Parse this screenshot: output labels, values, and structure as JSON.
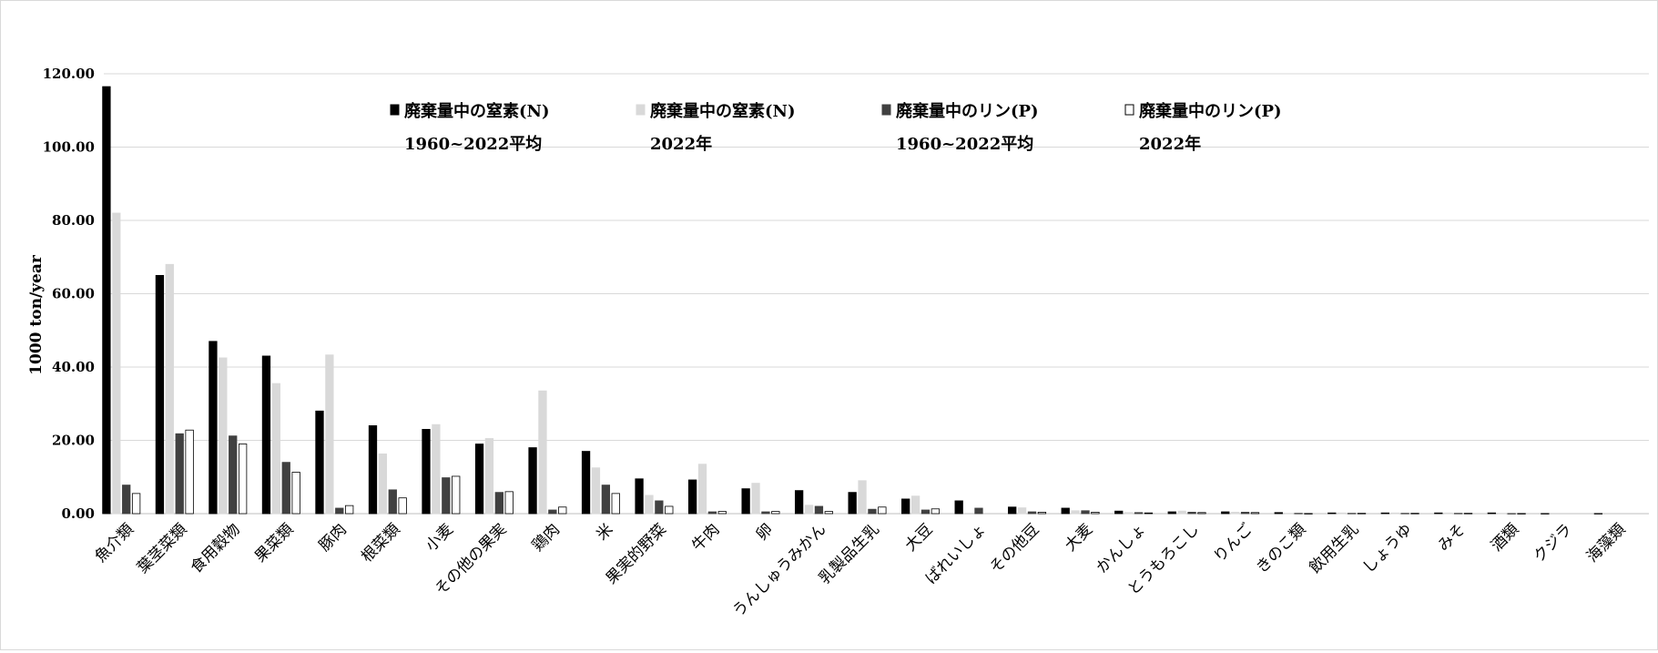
{
  "chart_data": {
    "type": "bar",
    "title": "",
    "xlabel": "",
    "ylabel": "1000 ton/year",
    "ylim": [
      0,
      120
    ],
    "yticks": [
      "0.00",
      "20.00",
      "40.00",
      "60.00",
      "80.00",
      "100.00",
      "120.00"
    ],
    "grid": true,
    "legend_position": "top",
    "categories": [
      "魚介類",
      "葉茎菜類",
      "食用穀物",
      "果菜類",
      "豚肉",
      "根菜類",
      "小麦",
      "その他の果実",
      "鶏肉",
      "米",
      "果実的野菜",
      "牛肉",
      "卵",
      "うんしゅうみかん",
      "乳製品生乳",
      "大豆",
      "ばれいしょ",
      "その他豆",
      "大麦",
      "かんしょ",
      "とうもろこし",
      "りんご",
      "きのこ類",
      "飲用生乳",
      "しょうゆ",
      "みそ",
      "酒類",
      "クジラ",
      "海藻類"
    ],
    "series": [
      {
        "name": "廃棄量中の窒素(N)",
        "name_line2": "1960~2022平均",
        "color": "#000000",
        "stroke": "#000000",
        "values": [
          116.5,
          65.0,
          47.0,
          43.0,
          28.0,
          24.0,
          23.0,
          19.0,
          18.0,
          17.0,
          9.5,
          9.2,
          6.8,
          6.3,
          5.8,
          4.0,
          3.5,
          1.8,
          1.5,
          0.7,
          0.5,
          0.5,
          0.3,
          0.2,
          0.2,
          0.2,
          0.2,
          0.05,
          0.05
        ]
      },
      {
        "name": "廃棄量中の窒素(N)",
        "name_line2": "2022年",
        "color": "#d9d9d9",
        "stroke": "#d9d9d9",
        "values": [
          82.0,
          68.0,
          42.5,
          35.5,
          43.3,
          16.3,
          24.3,
          20.5,
          33.5,
          12.5,
          5.0,
          13.5,
          8.3,
          2.3,
          9.0,
          4.8,
          0.0,
          1.6,
          0.8,
          0.3,
          0.7,
          0.4,
          0.1,
          0.2,
          0.2,
          0.2,
          0.1,
          0.0,
          0.0
        ]
      },
      {
        "name": "廃棄量中のリン(P)",
        "name_line2": "1960~2022平均",
        "color": "#404040",
        "stroke": "#404040",
        "values": [
          7.8,
          21.8,
          21.2,
          14.0,
          1.5,
          6.5,
          9.8,
          5.8,
          1.0,
          7.8,
          3.5,
          0.5,
          0.5,
          2.0,
          1.2,
          1.0,
          1.5,
          0.5,
          0.8,
          0.3,
          0.4,
          0.4,
          0.1,
          0.1,
          0.1,
          0.1,
          0.05,
          0.0,
          0.0
        ]
      },
      {
        "name": "廃棄量中のリン(P)",
        "name_line2": "2022年",
        "color": "#ffffff",
        "stroke": "#000000",
        "values": [
          5.5,
          22.8,
          19.0,
          11.3,
          2.2,
          4.3,
          10.2,
          6.0,
          1.8,
          5.5,
          2.0,
          0.6,
          0.6,
          0.6,
          1.8,
          1.3,
          0.0,
          0.4,
          0.4,
          0.2,
          0.3,
          0.3,
          0.05,
          0.1,
          0.1,
          0.1,
          0.05,
          0.0,
          0.0
        ]
      }
    ]
  }
}
